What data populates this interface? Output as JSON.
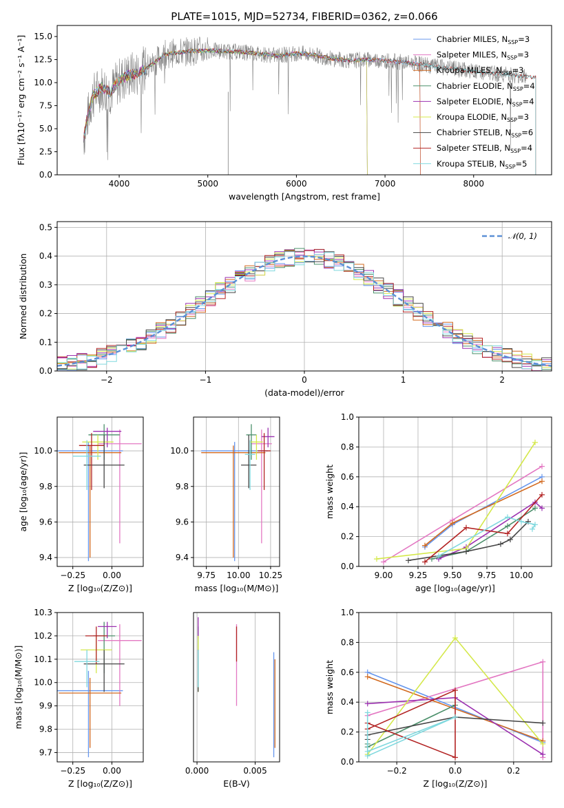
{
  "chart_data": [
    {
      "type": "line",
      "title": "PLATE=1015, MJD=52734, FIBERID=0362, z=0.066",
      "xlabel": "wavelength [Angstrom, rest frame]",
      "ylabel": "Flux [fλ10⁻¹⁷ erg cm⁻² s⁻¹ A⁻¹]",
      "xlim": [
        3300,
        8880
      ],
      "ylim": [
        0,
        16.2
      ],
      "xticks": [
        4000,
        5000,
        6000,
        7000,
        8000
      ],
      "yticks": [
        0.0,
        2.5,
        5.0,
        7.5,
        10.0,
        12.5,
        15.0
      ],
      "data_series": {
        "name": "data",
        "color": "#808080",
        "x": [
          3600,
          3650,
          3700,
          3800,
          3900,
          4000,
          4100,
          4200,
          4300,
          4400,
          4500,
          4600,
          4800,
          5000,
          5200,
          5400,
          5600,
          5800,
          6000,
          6200,
          6400,
          6600,
          6800,
          7000,
          7200,
          7400,
          7600,
          7800,
          8000,
          8200,
          8400,
          8600
        ],
        "y": [
          4.0,
          6.5,
          8.5,
          9.5,
          9.0,
          10.2,
          10.8,
          11.0,
          11.5,
          12.2,
          13.0,
          13.2,
          13.4,
          13.5,
          13.4,
          13.3,
          13.1,
          12.9,
          13.2,
          13.0,
          12.6,
          12.4,
          12.5,
          12.4,
          12.2,
          12.0,
          11.7,
          11.5,
          11.2,
          11.0,
          10.9,
          10.6
        ]
      },
      "model_series": [
        {
          "name": "Chabrier MILES, N",
          "nssp": "=3",
          "color": "#6495ED",
          "xmax": 7400
        },
        {
          "name": "Salpeter MILES, N",
          "nssp": "=3",
          "color": "#E377C2",
          "xmax": 7400
        },
        {
          "name": "Kroupa MILES, N",
          "nssp": "=3",
          "color": "#D2691E",
          "xmax": 7400
        },
        {
          "name": "Chabrier ELODIE, N",
          "nssp": "=4",
          "color": "#4A8F6A",
          "xmax": 6800
        },
        {
          "name": "Salpeter ELODIE, N",
          "nssp": "=4",
          "color": "#9B30B0",
          "xmax": 6800
        },
        {
          "name": "Kroupa ELODIE, N",
          "nssp": "=3",
          "color": "#D4E84A",
          "xmax": 6800
        },
        {
          "name": "Chabrier STELIB, N",
          "nssp": "=6",
          "color": "#444444",
          "xmax": 8700
        },
        {
          "name": "Salpeter STELIB, N",
          "nssp": "=4",
          "color": "#B22222",
          "xmax": 8700
        },
        {
          "name": "Kroupa STELIB, N",
          "nssp": "=5",
          "color": "#7FD8DE",
          "xmax": 8700
        }
      ]
    },
    {
      "type": "line",
      "xlabel": "(data-model)/error",
      "ylabel": "Normed distribution",
      "xlim": [
        -2.5,
        2.5
      ],
      "ylim": [
        0,
        0.52
      ],
      "xticks": [
        -2,
        -1,
        0,
        1,
        2
      ],
      "yticks": [
        0.0,
        0.1,
        0.2,
        0.3,
        0.4,
        0.5
      ],
      "legend": "𝒩(0, 1)",
      "grid": true
    },
    {
      "type": "scatter",
      "xlabel": "Z [log₁₀(Z/Z⊙)]",
      "ylabel": "age  [log₁₀(age/yr)]",
      "xlim": [
        -0.35,
        0.2
      ],
      "ylim": [
        9.35,
        10.19
      ],
      "xticks": [
        -0.25,
        0.0
      ],
      "yticks": [
        9.4,
        9.6,
        9.8,
        10.0
      ],
      "points": [
        {
          "x": -0.15,
          "y": 10.0,
          "xerr": 0.22,
          "ylo": 9.38,
          "yhi": 10.05
        },
        {
          "x": 0.05,
          "y": 10.04,
          "xerr": 0.14,
          "ylo": 9.48,
          "yhi": 10.12
        },
        {
          "x": -0.14,
          "y": 9.99,
          "xerr": 0.2,
          "ylo": 9.4,
          "yhi": 10.03
        },
        {
          "x": -0.05,
          "y": 10.09,
          "xerr": 0.1,
          "ylo": 9.95,
          "yhi": 10.15
        },
        {
          "x": -0.03,
          "y": 10.11,
          "xerr": 0.09,
          "ylo": 10.02,
          "yhi": 10.13
        },
        {
          "x": -0.09,
          "y": 10.05,
          "xerr": 0.1,
          "ylo": 9.95,
          "yhi": 10.09
        },
        {
          "x": -0.05,
          "y": 9.92,
          "xerr": 0.13,
          "ylo": 9.79,
          "yhi": 10.09
        },
        {
          "x": -0.13,
          "y": 10.03,
          "xerr": 0.08,
          "ylo": 9.78,
          "yhi": 10.1
        },
        {
          "x": -0.16,
          "y": 9.97,
          "xerr": 0.09,
          "ylo": 9.78,
          "yhi": 10.06
        }
      ]
    },
    {
      "type": "scatter",
      "xlabel": "mass [log₁₀(M/M⊙)]",
      "xlim": [
        9.65,
        10.32
      ],
      "ylim": [
        9.35,
        10.19
      ],
      "xticks": [
        9.75,
        10.0,
        10.25
      ],
      "yticks": [
        9.4,
        9.6,
        9.8,
        10.0
      ],
      "points": [
        {
          "x": 9.97,
          "y": 10.0,
          "xerr": 0.26,
          "ylo": 9.38,
          "yhi": 10.05
        },
        {
          "x": 10.18,
          "y": 10.04,
          "xerr": 0.08,
          "ylo": 9.48,
          "yhi": 10.12
        },
        {
          "x": 9.96,
          "y": 9.99,
          "xerr": 0.25,
          "ylo": 9.4,
          "yhi": 10.03
        },
        {
          "x": 10.1,
          "y": 10.09,
          "xerr": 0.04,
          "ylo": 9.95,
          "yhi": 10.15
        },
        {
          "x": 10.23,
          "y": 10.08,
          "xerr": 0.05,
          "ylo": 10.02,
          "yhi": 10.13
        },
        {
          "x": 10.14,
          "y": 10.05,
          "xerr": 0.05,
          "ylo": 9.95,
          "yhi": 10.09
        },
        {
          "x": 10.08,
          "y": 9.92,
          "xerr": 0.06,
          "ylo": 9.79,
          "yhi": 10.09
        },
        {
          "x": 10.2,
          "y": 10.0,
          "xerr": 0.05,
          "ylo": 9.78,
          "yhi": 10.1
        },
        {
          "x": 10.09,
          "y": 9.98,
          "xerr": 0.04,
          "ylo": 9.78,
          "yhi": 10.06
        }
      ]
    },
    {
      "type": "line",
      "xlabel": "age  [log₁₀(age/yr)]",
      "ylabel": "mass weight",
      "xlim": [
        8.82,
        10.22
      ],
      "ylim": [
        0,
        1.0
      ],
      "xticks": [
        9.0,
        9.25,
        9.5,
        9.75,
        10.0
      ],
      "yticks": [
        0.0,
        0.2,
        0.4,
        0.6,
        0.8,
        1.0
      ],
      "series": [
        {
          "name": "Chabrier MILES",
          "x": [
            9.3,
            9.5,
            10.15
          ],
          "y": [
            0.13,
            0.28,
            0.6
          ]
        },
        {
          "name": "Salpeter MILES",
          "x": [
            9.0,
            9.5,
            10.15
          ],
          "y": [
            0.03,
            0.31,
            0.67
          ]
        },
        {
          "name": "Kroupa MILES",
          "x": [
            9.3,
            9.5,
            10.15
          ],
          "y": [
            0.14,
            0.29,
            0.57
          ]
        },
        {
          "name": "Chabrier ELODIE",
          "x": [
            9.35,
            9.6,
            9.9,
            10.1
          ],
          "y": [
            0.05,
            0.1,
            0.27,
            0.39
          ]
        },
        {
          "name": "Salpeter ELODIE",
          "x": [
            9.4,
            9.6,
            10.1,
            10.15
          ],
          "y": [
            0.05,
            0.13,
            0.43,
            0.39
          ]
        },
        {
          "name": "Kroupa ELODIE",
          "x": [
            8.95,
            9.6,
            10.1
          ],
          "y": [
            0.05,
            0.12,
            0.83
          ]
        },
        {
          "name": "Chabrier STELIB",
          "x": [
            9.18,
            9.6,
            9.85,
            9.92,
            10.05
          ],
          "y": [
            0.04,
            0.1,
            0.15,
            0.18,
            0.3
          ]
        },
        {
          "name": "Salpeter STELIB",
          "x": [
            9.3,
            9.6,
            9.9,
            10.15
          ],
          "y": [
            0.03,
            0.26,
            0.22,
            0.48
          ]
        },
        {
          "name": "Kroupa STELIB",
          "x": [
            9.4,
            9.9,
            10.0,
            10.1,
            10.08
          ],
          "y": [
            0.07,
            0.33,
            0.3,
            0.28,
            0.25
          ]
        }
      ]
    },
    {
      "type": "scatter",
      "xlabel": "Z [log₁₀(Z/Z⊙)]",
      "ylabel": "mass [log₁₀(M/M⊙)]",
      "xlim": [
        -0.35,
        0.2
      ],
      "ylim": [
        9.66,
        10.3
      ],
      "xticks": [
        -0.25,
        0.0
      ],
      "yticks": [
        9.7,
        9.8,
        9.9,
        10.0,
        10.1,
        10.2,
        10.3
      ],
      "points": [
        {
          "x": -0.15,
          "y": 9.965,
          "xerr": 0.22,
          "ylo": 9.68,
          "yhi": 10.05
        },
        {
          "x": 0.05,
          "y": 10.18,
          "xerr": 0.14,
          "ylo": 9.9,
          "yhi": 10.25
        },
        {
          "x": -0.14,
          "y": 9.955,
          "xerr": 0.2,
          "ylo": 9.72,
          "yhi": 10.02
        },
        {
          "x": -0.05,
          "y": 10.2,
          "xerr": 0.07,
          "ylo": 10.04,
          "yhi": 10.26
        },
        {
          "x": -0.03,
          "y": 10.24,
          "xerr": 0.06,
          "ylo": 10.19,
          "yhi": 10.26
        },
        {
          "x": -0.1,
          "y": 10.14,
          "xerr": 0.1,
          "ylo": 10.04,
          "yhi": 10.2
        },
        {
          "x": -0.05,
          "y": 10.08,
          "xerr": 0.13,
          "ylo": 9.96,
          "yhi": 10.14
        },
        {
          "x": -0.1,
          "y": 10.2,
          "xerr": 0.07,
          "ylo": 10.08,
          "yhi": 10.24
        },
        {
          "x": -0.16,
          "y": 10.09,
          "xerr": 0.08,
          "ylo": 9.98,
          "yhi": 10.14
        }
      ]
    },
    {
      "type": "scatter",
      "xlabel": "E(B-V)",
      "xlim": [
        -0.0003,
        0.0071
      ],
      "ylim": [
        9.66,
        10.3
      ],
      "xticks": [
        0.0,
        0.005
      ],
      "points": [
        {
          "x": 0.0066,
          "y": 9.965,
          "ylo": 9.68,
          "yhi": 10.13
        },
        {
          "x": 0.0034,
          "y": 10.18,
          "ylo": 9.9,
          "yhi": 10.25
        },
        {
          "x": 0.0067,
          "y": 9.955,
          "ylo": 9.72,
          "yhi": 10.1
        },
        {
          "x": 0.0001,
          "y": 10.2,
          "ylo": 9.97,
          "yhi": 10.24
        },
        {
          "x": 0.0001,
          "y": 10.24,
          "ylo": 10.19,
          "yhi": 10.28
        },
        {
          "x": 0.0001,
          "y": 10.14,
          "ylo": 9.96,
          "yhi": 10.2
        },
        {
          "x": 0.0001,
          "y": 10.08,
          "ylo": 9.96,
          "yhi": 10.14
        },
        {
          "x": 0.0034,
          "y": 10.2,
          "ylo": 10.09,
          "yhi": 10.24
        },
        {
          "x": 0.0001,
          "y": 10.09,
          "ylo": 9.98,
          "yhi": 10.14
        }
      ]
    },
    {
      "type": "line",
      "xlabel": "Z [log₁₀(Z/Z⊙)]",
      "ylabel": "mass weight",
      "xlim": [
        -0.33,
        0.33
      ],
      "ylim": [
        0,
        1.0
      ],
      "xticks": [
        -0.2,
        0.0,
        0.2
      ],
      "yticks": [
        0.0,
        0.2,
        0.4,
        0.6,
        0.8,
        1.0
      ],
      "series": [
        {
          "name": "Chabrier MILES",
          "x": [
            -0.3,
            0.3
          ],
          "y": [
            0.6,
            0.13
          ]
        },
        {
          "name": "Salpeter MILES",
          "x": [
            -0.3,
            0.3,
            0.3
          ],
          "y": [
            0.31,
            0.67,
            0.03
          ]
        },
        {
          "name": "Kroupa MILES",
          "x": [
            -0.3,
            0.3
          ],
          "y": [
            0.57,
            0.14
          ]
        },
        {
          "name": "Chabrier ELODIE",
          "x": [
            -0.3,
            -0.3,
            0.0
          ],
          "y": [
            0.12,
            0.1,
            0.38
          ]
        },
        {
          "name": "Salpeter ELODIE",
          "x": [
            -0.3,
            0.0,
            0.3
          ],
          "y": [
            0.39,
            0.43,
            0.05
          ]
        },
        {
          "name": "Kroupa ELODIE",
          "x": [
            -0.3,
            0.0,
            0.3
          ],
          "y": [
            0.05,
            0.83,
            0.12
          ]
        },
        {
          "name": "Chabrier STELIB",
          "x": [
            -0.3,
            -0.3,
            0.0,
            0.3
          ],
          "y": [
            0.15,
            0.18,
            0.3,
            0.26
          ]
        },
        {
          "name": "Salpeter STELIB",
          "x": [
            -0.3,
            0.0,
            0.0,
            -0.3
          ],
          "y": [
            0.22,
            0.48,
            0.03,
            0.26
          ]
        },
        {
          "name": "Kroupa STELIB",
          "x": [
            -0.3,
            0.0,
            -0.3,
            -0.3
          ],
          "y": [
            0.04,
            0.3,
            0.07,
            0.33
          ]
        }
      ]
    }
  ]
}
